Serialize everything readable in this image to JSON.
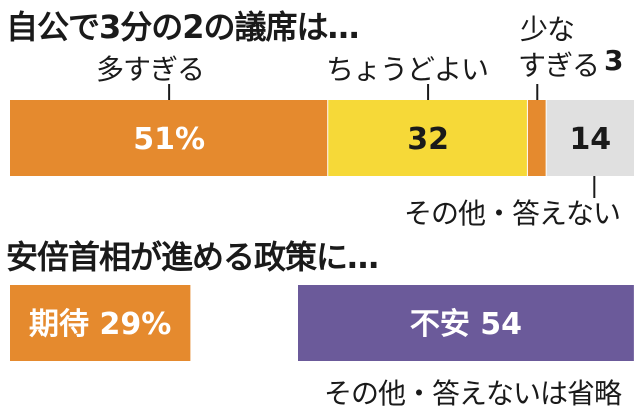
{
  "chart_data": [
    {
      "type": "bar",
      "orientation": "horizontal-stacked",
      "title": "自公で3分の2の議席は…",
      "categories": [
        "多すぎる",
        "ちょうどよい",
        "少なすぎる",
        "その他・答えない"
      ],
      "category_lines": [
        [
          "多すぎる"
        ],
        [
          "ちょうどよい"
        ],
        [
          "少な",
          "すぎる"
        ],
        [
          "その他・答えない"
        ]
      ],
      "values": [
        51,
        32,
        3,
        14
      ],
      "value_labels": [
        "51%",
        "32",
        "3",
        "14"
      ],
      "colors": [
        "#e58a2e",
        "#f6d938",
        "#e58a2e",
        "#e0e0e0"
      ]
    },
    {
      "type": "bar",
      "orientation": "horizontal-stacked",
      "title": "安倍首相が進める政策に…",
      "categories": [
        "期待",
        "不安"
      ],
      "values": [
        29,
        54
      ],
      "value_labels": [
        "29%",
        "54"
      ],
      "colors": [
        "#e58a2e",
        "#6b5a9a"
      ],
      "note": "その他・答えないは省略"
    }
  ]
}
